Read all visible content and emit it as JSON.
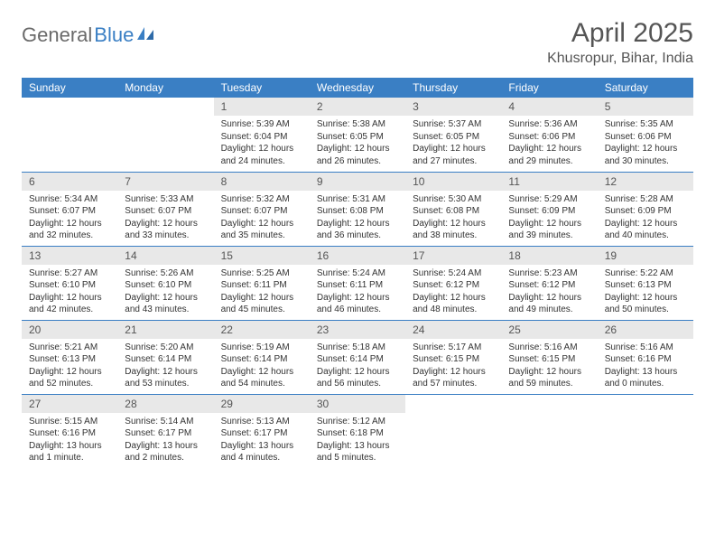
{
  "brand": {
    "part1": "General",
    "part2": "Blue"
  },
  "title": "April 2025",
  "location": "Khusropur, Bihar, India",
  "colors": {
    "header_bg": "#3a7fc4",
    "header_text": "#ffffff",
    "daynum_bg": "#e8e8e8",
    "border": "#3a7fc4",
    "body_text": "#333333",
    "title_text": "#555555"
  },
  "weekdays": [
    "Sunday",
    "Monday",
    "Tuesday",
    "Wednesday",
    "Thursday",
    "Friday",
    "Saturday"
  ],
  "weeks": [
    [
      null,
      null,
      {
        "n": "1",
        "sr": "Sunrise: 5:39 AM",
        "ss": "Sunset: 6:04 PM",
        "dl": "Daylight: 12 hours and 24 minutes."
      },
      {
        "n": "2",
        "sr": "Sunrise: 5:38 AM",
        "ss": "Sunset: 6:05 PM",
        "dl": "Daylight: 12 hours and 26 minutes."
      },
      {
        "n": "3",
        "sr": "Sunrise: 5:37 AM",
        "ss": "Sunset: 6:05 PM",
        "dl": "Daylight: 12 hours and 27 minutes."
      },
      {
        "n": "4",
        "sr": "Sunrise: 5:36 AM",
        "ss": "Sunset: 6:06 PM",
        "dl": "Daylight: 12 hours and 29 minutes."
      },
      {
        "n": "5",
        "sr": "Sunrise: 5:35 AM",
        "ss": "Sunset: 6:06 PM",
        "dl": "Daylight: 12 hours and 30 minutes."
      }
    ],
    [
      {
        "n": "6",
        "sr": "Sunrise: 5:34 AM",
        "ss": "Sunset: 6:07 PM",
        "dl": "Daylight: 12 hours and 32 minutes."
      },
      {
        "n": "7",
        "sr": "Sunrise: 5:33 AM",
        "ss": "Sunset: 6:07 PM",
        "dl": "Daylight: 12 hours and 33 minutes."
      },
      {
        "n": "8",
        "sr": "Sunrise: 5:32 AM",
        "ss": "Sunset: 6:07 PM",
        "dl": "Daylight: 12 hours and 35 minutes."
      },
      {
        "n": "9",
        "sr": "Sunrise: 5:31 AM",
        "ss": "Sunset: 6:08 PM",
        "dl": "Daylight: 12 hours and 36 minutes."
      },
      {
        "n": "10",
        "sr": "Sunrise: 5:30 AM",
        "ss": "Sunset: 6:08 PM",
        "dl": "Daylight: 12 hours and 38 minutes."
      },
      {
        "n": "11",
        "sr": "Sunrise: 5:29 AM",
        "ss": "Sunset: 6:09 PM",
        "dl": "Daylight: 12 hours and 39 minutes."
      },
      {
        "n": "12",
        "sr": "Sunrise: 5:28 AM",
        "ss": "Sunset: 6:09 PM",
        "dl": "Daylight: 12 hours and 40 minutes."
      }
    ],
    [
      {
        "n": "13",
        "sr": "Sunrise: 5:27 AM",
        "ss": "Sunset: 6:10 PM",
        "dl": "Daylight: 12 hours and 42 minutes."
      },
      {
        "n": "14",
        "sr": "Sunrise: 5:26 AM",
        "ss": "Sunset: 6:10 PM",
        "dl": "Daylight: 12 hours and 43 minutes."
      },
      {
        "n": "15",
        "sr": "Sunrise: 5:25 AM",
        "ss": "Sunset: 6:11 PM",
        "dl": "Daylight: 12 hours and 45 minutes."
      },
      {
        "n": "16",
        "sr": "Sunrise: 5:24 AM",
        "ss": "Sunset: 6:11 PM",
        "dl": "Daylight: 12 hours and 46 minutes."
      },
      {
        "n": "17",
        "sr": "Sunrise: 5:24 AM",
        "ss": "Sunset: 6:12 PM",
        "dl": "Daylight: 12 hours and 48 minutes."
      },
      {
        "n": "18",
        "sr": "Sunrise: 5:23 AM",
        "ss": "Sunset: 6:12 PM",
        "dl": "Daylight: 12 hours and 49 minutes."
      },
      {
        "n": "19",
        "sr": "Sunrise: 5:22 AM",
        "ss": "Sunset: 6:13 PM",
        "dl": "Daylight: 12 hours and 50 minutes."
      }
    ],
    [
      {
        "n": "20",
        "sr": "Sunrise: 5:21 AM",
        "ss": "Sunset: 6:13 PM",
        "dl": "Daylight: 12 hours and 52 minutes."
      },
      {
        "n": "21",
        "sr": "Sunrise: 5:20 AM",
        "ss": "Sunset: 6:14 PM",
        "dl": "Daylight: 12 hours and 53 minutes."
      },
      {
        "n": "22",
        "sr": "Sunrise: 5:19 AM",
        "ss": "Sunset: 6:14 PM",
        "dl": "Daylight: 12 hours and 54 minutes."
      },
      {
        "n": "23",
        "sr": "Sunrise: 5:18 AM",
        "ss": "Sunset: 6:14 PM",
        "dl": "Daylight: 12 hours and 56 minutes."
      },
      {
        "n": "24",
        "sr": "Sunrise: 5:17 AM",
        "ss": "Sunset: 6:15 PM",
        "dl": "Daylight: 12 hours and 57 minutes."
      },
      {
        "n": "25",
        "sr": "Sunrise: 5:16 AM",
        "ss": "Sunset: 6:15 PM",
        "dl": "Daylight: 12 hours and 59 minutes."
      },
      {
        "n": "26",
        "sr": "Sunrise: 5:16 AM",
        "ss": "Sunset: 6:16 PM",
        "dl": "Daylight: 13 hours and 0 minutes."
      }
    ],
    [
      {
        "n": "27",
        "sr": "Sunrise: 5:15 AM",
        "ss": "Sunset: 6:16 PM",
        "dl": "Daylight: 13 hours and 1 minute."
      },
      {
        "n": "28",
        "sr": "Sunrise: 5:14 AM",
        "ss": "Sunset: 6:17 PM",
        "dl": "Daylight: 13 hours and 2 minutes."
      },
      {
        "n": "29",
        "sr": "Sunrise: 5:13 AM",
        "ss": "Sunset: 6:17 PM",
        "dl": "Daylight: 13 hours and 4 minutes."
      },
      {
        "n": "30",
        "sr": "Sunrise: 5:12 AM",
        "ss": "Sunset: 6:18 PM",
        "dl": "Daylight: 13 hours and 5 minutes."
      },
      null,
      null,
      null
    ]
  ]
}
